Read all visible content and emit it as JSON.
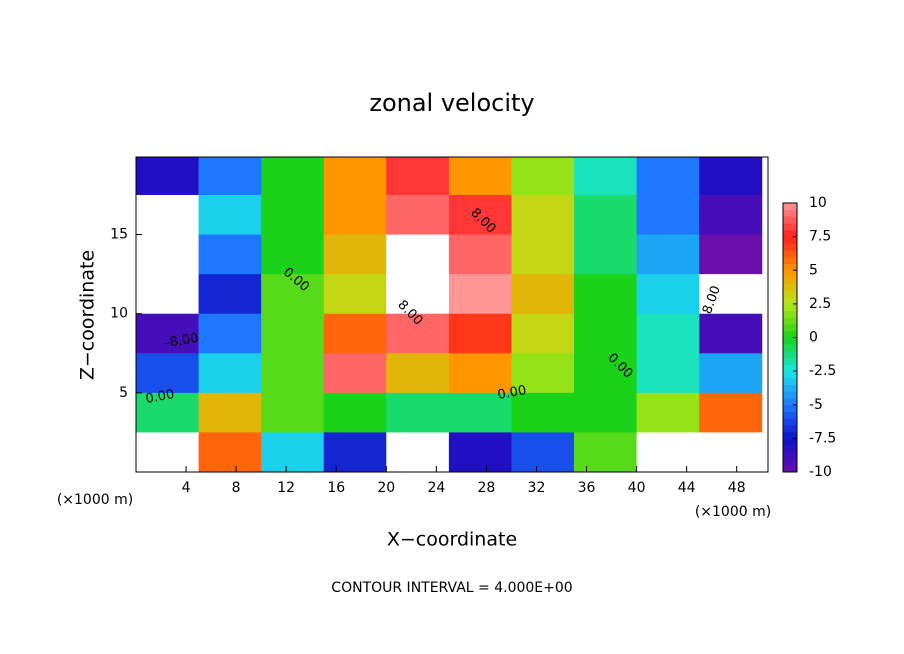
{
  "chart_data": {
    "type": "contour",
    "title": "zonal velocity",
    "x_label": "X−coordinate",
    "y_label": "Z−coordinate",
    "x_unit": "(×1000 m)",
    "y_unit": "(×1000 m)",
    "footer": "CONTOUR INTERVAL = 4.000E+00",
    "contour_labels": [
      "-8.00",
      "0.00",
      "0.00",
      "0.00",
      "0.00",
      "8.00",
      "8.00",
      "8.00"
    ],
    "x": [
      2.5,
      7.5,
      12.5,
      17.5,
      22.5,
      27.5,
      32.5,
      37.5,
      42.5,
      47.5
    ],
    "y": [
      18.75,
      16.25,
      13.75,
      11.25,
      8.75,
      6.25,
      3.75,
      1.25
    ],
    "z": [
      [
        -8,
        -5,
        0,
        5,
        8,
        5,
        2,
        -2,
        -5,
        -8
      ],
      [
        12,
        -3,
        0,
        5,
        9,
        8,
        3,
        -1,
        -5,
        -9
      ],
      [
        12,
        -5,
        0,
        4,
        12,
        9,
        3,
        -1,
        -4,
        -10
      ],
      [
        12,
        -7,
        1,
        3,
        12,
        10,
        4,
        0,
        -3,
        12
      ],
      [
        -9,
        -5,
        1,
        6,
        9,
        7,
        3,
        0,
        -2,
        -9
      ],
      [
        -6,
        -3,
        1,
        9,
        4,
        5,
        2,
        0,
        -2,
        -4
      ],
      [
        -1,
        4,
        1,
        0,
        -1,
        -1,
        0,
        0,
        2,
        6
      ],
      [
        12,
        6,
        -3,
        -7,
        12,
        -8,
        -6,
        1,
        12,
        12
      ]
    ],
    "xlim": [
      0,
      50.5
    ],
    "ylim": [
      0,
      19.9
    ],
    "xticks": [
      4,
      8,
      12,
      16,
      20,
      24,
      28,
      32,
      36,
      40,
      44,
      48
    ],
    "yticks": [
      5,
      10,
      15
    ],
    "clim": [
      -10,
      10
    ],
    "cticks": [
      10,
      7.5,
      5,
      2.5,
      0,
      -2.5,
      -5,
      -7.5,
      -10
    ],
    "colormap": [
      "#6a0dad",
      "#1010c8",
      "#1e78ff",
      "#19e6e6",
      "#19d219",
      "#b4e619",
      "#ff9600",
      "#ff1e1e",
      "#ff9696"
    ],
    "over_color": "#ffffff"
  }
}
